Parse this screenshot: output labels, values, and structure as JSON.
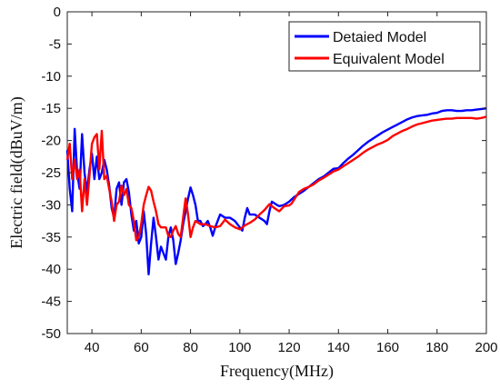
{
  "chart_data": {
    "type": "line",
    "xlabel": "Frequency(MHz)",
    "ylabel": "Electric field(dBuV/m)",
    "xlim": [
      30,
      200
    ],
    "ylim": [
      -50,
      0
    ],
    "xticks": [
      40,
      60,
      80,
      100,
      120,
      140,
      160,
      180,
      200
    ],
    "yticks": [
      0,
      -5,
      -10,
      -15,
      -20,
      -25,
      -30,
      -35,
      -40,
      -45,
      -50
    ],
    "grid": false,
    "legend_position": "top-right",
    "series": [
      {
        "name": "Detaied Model",
        "color": "#0000ff",
        "points": [
          [
            30,
            -21.5
          ],
          [
            31,
            -27.5
          ],
          [
            32,
            -31
          ],
          [
            33,
            -18.2
          ],
          [
            34,
            -25
          ],
          [
            35,
            -27.5
          ],
          [
            36,
            -19
          ],
          [
            37,
            -25
          ],
          [
            38,
            -28
          ],
          [
            39,
            -24.5
          ],
          [
            40,
            -22
          ],
          [
            41,
            -26
          ],
          [
            42,
            -22.5
          ],
          [
            43,
            -26
          ],
          [
            44,
            -25
          ],
          [
            45,
            -23
          ],
          [
            46,
            -24.5
          ],
          [
            47,
            -27
          ],
          [
            48,
            -30.5
          ],
          [
            49,
            -32
          ],
          [
            50,
            -27.5
          ],
          [
            51,
            -26.5
          ],
          [
            52,
            -30
          ],
          [
            53,
            -26.5
          ],
          [
            54,
            -26
          ],
          [
            55,
            -28
          ],
          [
            56,
            -31.5
          ],
          [
            57,
            -34
          ],
          [
            58,
            -32.5
          ],
          [
            59,
            -36
          ],
          [
            60,
            -35
          ],
          [
            61,
            -31
          ],
          [
            62,
            -34.5
          ],
          [
            63,
            -40.8
          ],
          [
            64,
            -36
          ],
          [
            65,
            -32
          ],
          [
            66,
            -35
          ],
          [
            67,
            -38.5
          ],
          [
            68,
            -36.5
          ],
          [
            69,
            -37.5
          ],
          [
            70,
            -38.5
          ],
          [
            71,
            -35
          ],
          [
            72,
            -33.5
          ],
          [
            73,
            -35.5
          ],
          [
            74,
            -39.2
          ],
          [
            75,
            -37.5
          ],
          [
            76,
            -35.5
          ],
          [
            77,
            -33
          ],
          [
            78,
            -31
          ],
          [
            79,
            -29
          ],
          [
            80,
            -27.3
          ],
          [
            81,
            -28.5
          ],
          [
            82,
            -30
          ],
          [
            83,
            -32.5
          ],
          [
            84,
            -32.5
          ],
          [
            85,
            -33.3
          ],
          [
            86,
            -33
          ],
          [
            87,
            -32.5
          ],
          [
            88,
            -33.5
          ],
          [
            89,
            -34.8
          ],
          [
            90,
            -33.5
          ],
          [
            92,
            -31.5
          ],
          [
            94,
            -32
          ],
          [
            96,
            -32
          ],
          [
            98,
            -32.5
          ],
          [
            100,
            -33.5
          ],
          [
            101,
            -34
          ],
          [
            102,
            -32
          ],
          [
            103,
            -30.5
          ],
          [
            104,
            -31.5
          ],
          [
            106,
            -31.5
          ],
          [
            108,
            -32
          ],
          [
            110,
            -32.5
          ],
          [
            111,
            -33
          ],
          [
            112,
            -31
          ],
          [
            113,
            -29.5
          ],
          [
            115,
            -30
          ],
          [
            116,
            -30.2
          ],
          [
            118,
            -30
          ],
          [
            120,
            -29.5
          ],
          [
            122,
            -28.8
          ],
          [
            124,
            -28.3
          ],
          [
            126,
            -27.8
          ],
          [
            128,
            -27.2
          ],
          [
            130,
            -26.6
          ],
          [
            132,
            -26
          ],
          [
            134,
            -25.6
          ],
          [
            136,
            -25
          ],
          [
            138,
            -24.4
          ],
          [
            140,
            -24.3
          ],
          [
            142,
            -23.5
          ],
          [
            144,
            -22.8
          ],
          [
            146,
            -22.2
          ],
          [
            148,
            -21.5
          ],
          [
            150,
            -20.8
          ],
          [
            152,
            -20.2
          ],
          [
            154,
            -19.7
          ],
          [
            156,
            -19.2
          ],
          [
            158,
            -18.7
          ],
          [
            160,
            -18.3
          ],
          [
            162,
            -17.9
          ],
          [
            164,
            -17.5
          ],
          [
            166,
            -17.1
          ],
          [
            168,
            -16.7
          ],
          [
            170,
            -16.4
          ],
          [
            172,
            -16.2
          ],
          [
            174,
            -16.1
          ],
          [
            176,
            -16
          ],
          [
            178,
            -15.8
          ],
          [
            180,
            -15.7
          ],
          [
            182,
            -15.4
          ],
          [
            184,
            -15.3
          ],
          [
            186,
            -15.3
          ],
          [
            188,
            -15.4
          ],
          [
            190,
            -15.4
          ],
          [
            192,
            -15.3
          ],
          [
            194,
            -15.3
          ],
          [
            196,
            -15.2
          ],
          [
            198,
            -15.1
          ],
          [
            200,
            -15
          ]
        ]
      },
      {
        "name": "Equivalent Model",
        "color": "#ff0000",
        "points": [
          [
            30,
            -23
          ],
          [
            31,
            -20.5
          ],
          [
            32,
            -26
          ],
          [
            33,
            -23
          ],
          [
            34,
            -26
          ],
          [
            35,
            -24.5
          ],
          [
            36,
            -31
          ],
          [
            37,
            -26
          ],
          [
            38,
            -30
          ],
          [
            39,
            -25.5
          ],
          [
            40,
            -20.5
          ],
          [
            41,
            -19.5
          ],
          [
            42,
            -19
          ],
          [
            43,
            -24.5
          ],
          [
            44,
            -18.5
          ],
          [
            45,
            -26
          ],
          [
            46,
            -25.5
          ],
          [
            47,
            -27.5
          ],
          [
            48,
            -29.5
          ],
          [
            49,
            -32.5
          ],
          [
            50,
            -30
          ],
          [
            51,
            -29.5
          ],
          [
            52,
            -27
          ],
          [
            53,
            -28.5
          ],
          [
            54,
            -27.5
          ],
          [
            55,
            -30
          ],
          [
            56,
            -30.5
          ],
          [
            57,
            -32.5
          ],
          [
            58,
            -35.5
          ],
          [
            59,
            -35
          ],
          [
            60,
            -33
          ],
          [
            61,
            -30
          ],
          [
            62,
            -28.5
          ],
          [
            63,
            -27.2
          ],
          [
            64,
            -27.8
          ],
          [
            65,
            -29.5
          ],
          [
            66,
            -31
          ],
          [
            67,
            -33
          ],
          [
            68,
            -33.5
          ],
          [
            70,
            -33.5
          ],
          [
            71,
            -34.8
          ],
          [
            72,
            -35
          ],
          [
            73,
            -34
          ],
          [
            74,
            -33.3
          ],
          [
            75,
            -34.5
          ],
          [
            76,
            -35
          ],
          [
            77,
            -32
          ],
          [
            78,
            -29
          ],
          [
            79,
            -31.5
          ],
          [
            80,
            -35
          ],
          [
            81,
            -33.5
          ],
          [
            82,
            -32.5
          ],
          [
            84,
            -33
          ],
          [
            86,
            -33
          ],
          [
            88,
            -33.3
          ],
          [
            90,
            -33.5
          ],
          [
            92,
            -33.3
          ],
          [
            94,
            -32.3
          ],
          [
            96,
            -33
          ],
          [
            98,
            -33.5
          ],
          [
            100,
            -33.8
          ],
          [
            102,
            -33.2
          ],
          [
            104,
            -32.8
          ],
          [
            106,
            -32.3
          ],
          [
            108,
            -31.5
          ],
          [
            110,
            -30.8
          ],
          [
            112,
            -29.9
          ],
          [
            114,
            -30.5
          ],
          [
            116,
            -31
          ],
          [
            118,
            -30.2
          ],
          [
            120,
            -30.1
          ],
          [
            121,
            -29.8
          ],
          [
            122,
            -29.2
          ],
          [
            124,
            -28
          ],
          [
            126,
            -27.5
          ],
          [
            128,
            -27.2
          ],
          [
            130,
            -26.8
          ],
          [
            132,
            -26.2
          ],
          [
            134,
            -25.8
          ],
          [
            136,
            -25.3
          ],
          [
            138,
            -24.8
          ],
          [
            140,
            -24.5
          ],
          [
            142,
            -24
          ],
          [
            144,
            -23.5
          ],
          [
            146,
            -23
          ],
          [
            148,
            -22.5
          ],
          [
            150,
            -21.9
          ],
          [
            152,
            -21.4
          ],
          [
            154,
            -21
          ],
          [
            156,
            -20.6
          ],
          [
            158,
            -20.3
          ],
          [
            160,
            -19.9
          ],
          [
            162,
            -19.3
          ],
          [
            164,
            -18.9
          ],
          [
            166,
            -18.5
          ],
          [
            168,
            -18.2
          ],
          [
            170,
            -17.8
          ],
          [
            172,
            -17.5
          ],
          [
            174,
            -17.3
          ],
          [
            176,
            -17.1
          ],
          [
            178,
            -16.9
          ],
          [
            180,
            -16.8
          ],
          [
            182,
            -16.7
          ],
          [
            184,
            -16.6
          ],
          [
            186,
            -16.6
          ],
          [
            188,
            -16.5
          ],
          [
            190,
            -16.5
          ],
          [
            192,
            -16.5
          ],
          [
            194,
            -16.5
          ],
          [
            196,
            -16.6
          ],
          [
            198,
            -16.5
          ],
          [
            200,
            -16.3
          ]
        ]
      }
    ]
  }
}
